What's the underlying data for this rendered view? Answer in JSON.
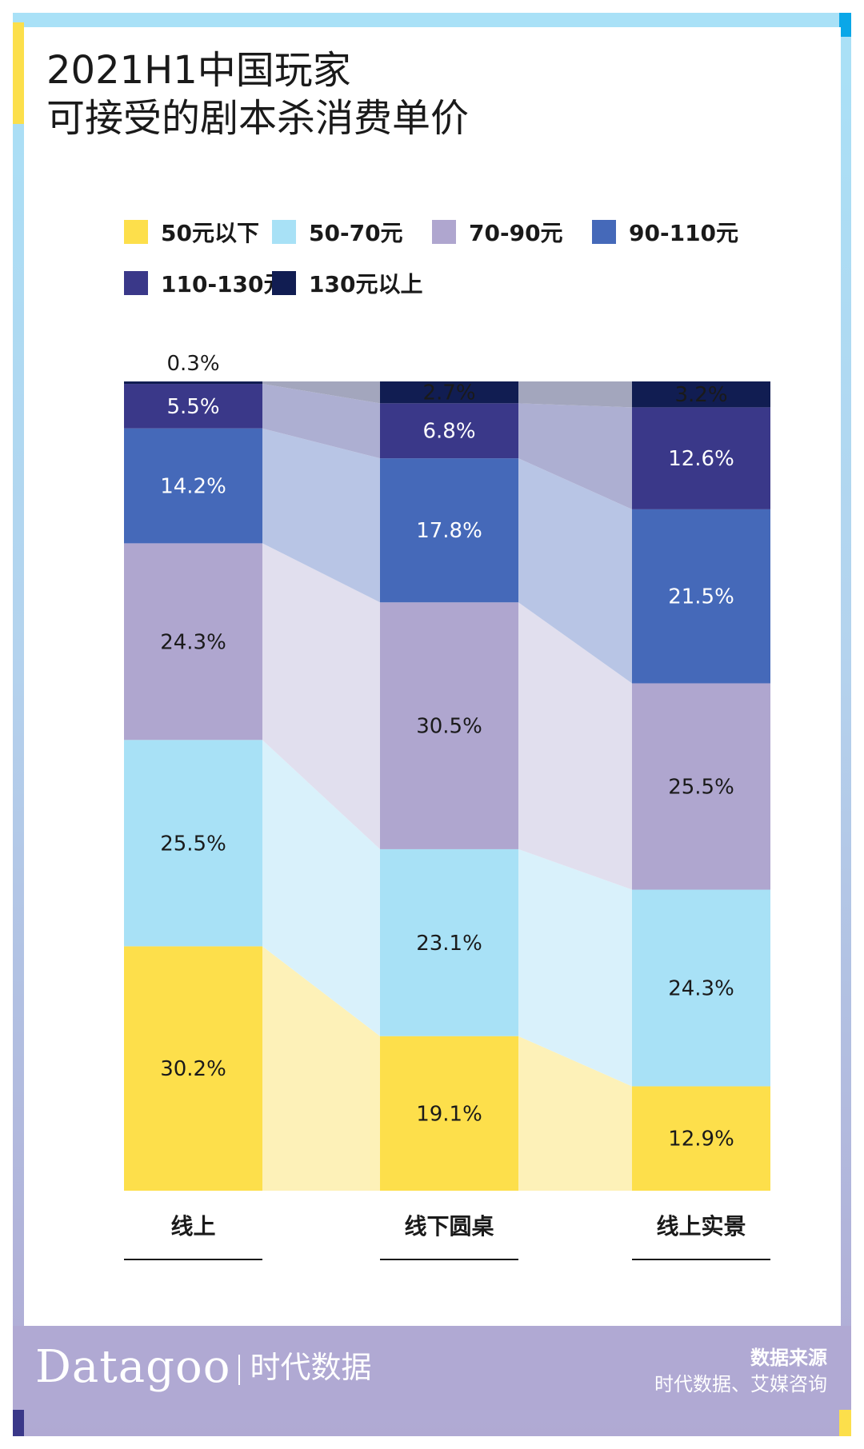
{
  "title": {
    "line1": "2021H1中国玩家",
    "line2": "可接受的剧本杀消费单价"
  },
  "colors": {
    "frame_top": "#a9e1f7",
    "frame_bottom": "#b0a9d3",
    "card": "#ffffff",
    "accent_yellow": "#fcdf4b",
    "accent_blue": "#0aa7e8",
    "accent_navy": "#3a3889"
  },
  "chart_data": {
    "type": "bar",
    "stacked": "percent",
    "title": "2021H1中国玩家可接受的剧本杀消费单价",
    "categories": [
      "线上",
      "线下圆桌",
      "线上实景"
    ],
    "series": [
      {
        "name": "50元以下",
        "values": [
          30.2,
          19.1,
          12.9
        ],
        "labels": [
          "30.2%",
          "19.1%",
          "12.9%"
        ],
        "color": "#fddf4b",
        "band_color": "#fdf1b8",
        "label_color": "#1a1a1a"
      },
      {
        "name": "50-70元",
        "values": [
          25.5,
          23.1,
          24.3
        ],
        "labels": [
          "25.5%",
          "23.1%",
          "24.3%"
        ],
        "color": "#a8e1f6",
        "band_color": "#d9f1fb",
        "label_color": "#1a1a1a"
      },
      {
        "name": "70-90元",
        "values": [
          24.3,
          30.5,
          25.5
        ],
        "labels": [
          "24.3%",
          "30.5%",
          "25.5%"
        ],
        "color": "#afa6cf",
        "band_color": "#e1dfee",
        "label_color": "#1a1a1a"
      },
      {
        "name": "90-110元",
        "values": [
          14.2,
          17.8,
          21.5
        ],
        "labels": [
          "14.2%",
          "17.8%",
          "21.5%"
        ],
        "color": "#4569b9",
        "band_color": "#b8c5e5",
        "label_color": "#ffffff"
      },
      {
        "name": "110-130元",
        "values": [
          5.5,
          6.8,
          12.6
        ],
        "labels": [
          "5.5%",
          "6.8%",
          "12.6%"
        ],
        "color": "#3a3889",
        "band_color": "#adafd2",
        "label_color": "#ffffff"
      },
      {
        "name": "130元以上",
        "values": [
          0.3,
          2.7,
          3.2
        ],
        "labels": [
          "0.3%",
          "2.7%",
          "3.2%"
        ],
        "color": "#111d52",
        "band_color": "#a3a6bd",
        "label_color": "#1a1a1a"
      }
    ],
    "ylim": [
      0,
      100
    ],
    "legend_position": "top",
    "grid": false
  },
  "footer": {
    "brand": "Datagoo",
    "brand_cn": "时代数据",
    "source_title": "数据来源",
    "source_text": "时代数据、艾媒咨询"
  }
}
